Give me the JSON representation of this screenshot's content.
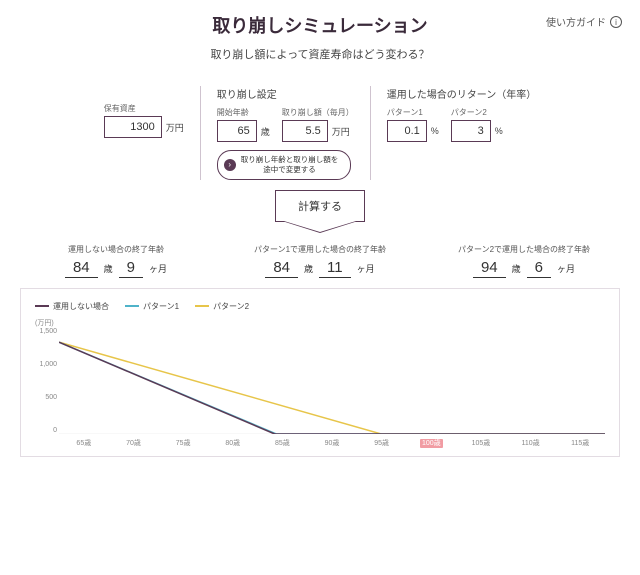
{
  "header": {
    "title": "取り崩しシミュレーション",
    "guide_label": "使い方ガイド",
    "subtitle": "取り崩し額によって資産寿命はどう変わる？"
  },
  "settings": {
    "assets": {
      "label": "保有資産",
      "value": "1300",
      "unit": "万円"
    },
    "withdrawal": {
      "header": "取り崩し設定",
      "start_age": {
        "label": "開始年齢",
        "value": "65",
        "unit": "歳"
      },
      "monthly": {
        "label": "取り崩し額（毎月）",
        "value": "5.5",
        "unit": "万円"
      },
      "change_button": "取り崩し年齢と取り崩し額を\n途中で変更する"
    },
    "returns": {
      "header": "運用した場合のリターン（年率）",
      "p1": {
        "label": "パターン1",
        "value": "0.1",
        "unit": "%"
      },
      "p2": {
        "label": "パターン2",
        "value": "3",
        "unit": "%"
      }
    }
  },
  "calculate_label": "計算する",
  "results": {
    "none": {
      "header": "運用しない場合の終了年齢",
      "age": "84",
      "age_u": "歳",
      "month": "9",
      "month_u": "ヶ月"
    },
    "p1": {
      "header": "パターン1で運用した場合の終了年齢",
      "age": "84",
      "age_u": "歳",
      "month": "11",
      "month_u": "ヶ月"
    },
    "p2": {
      "header": "パターン2で運用した場合の終了年齢",
      "age": "94",
      "age_u": "歳",
      "month": "6",
      "month_u": "ヶ月"
    }
  },
  "chart": {
    "type": "line",
    "legend": {
      "none": {
        "label": "運用しない場合",
        "color": "#5a3a55"
      },
      "p1": {
        "label": "パターン1",
        "color": "#4fb3c9"
      },
      "p2": {
        "label": "パターン2",
        "color": "#e7c54a"
      }
    },
    "y_unit": "(万円)",
    "y_ticks": [
      "1,500",
      "1,000",
      "500",
      "0"
    ],
    "ylim": [
      0,
      1500
    ],
    "x_ticks": [
      "65歳",
      "70歳",
      "75歳",
      "80歳",
      "85歳",
      "90歳",
      "95歳",
      "100歳",
      "105歳",
      "110歳",
      "115歳"
    ],
    "x_highlight_index": 7,
    "background_color": "#ffffff",
    "grid_color": "#f0f0f0",
    "line_width": 1.5,
    "series": {
      "none": {
        "x": [
          65,
          84.75
        ],
        "y": [
          1300,
          0
        ],
        "color": "#5a3a55"
      },
      "p1": {
        "x": [
          65,
          84.9
        ],
        "y": [
          1300,
          0
        ],
        "color": "#4fb3c9"
      },
      "p2": {
        "x": [
          65,
          94.5
        ],
        "y": [
          1300,
          0
        ],
        "color": "#e7c54a"
      }
    }
  }
}
